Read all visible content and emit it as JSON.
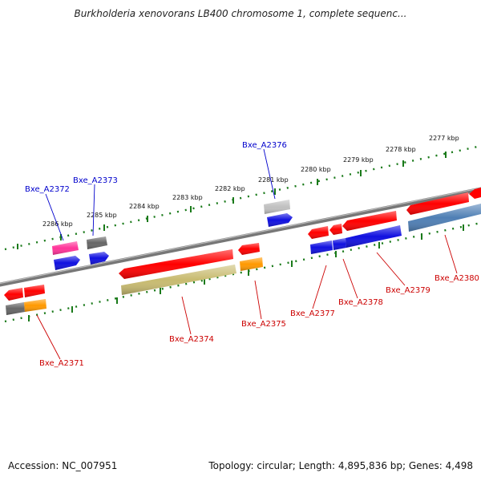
{
  "title": "Burkholderia xenovorans LB400 chromosome 1, complete sequenc...",
  "footer": {
    "accession": "Accession: NC_007951",
    "summary": "Topology: circular; Length: 4,895,836 bp; Genes: 4,498"
  },
  "ruler_labels": [
    "2286 kbp",
    "2285 kbp",
    "2284 kbp",
    "2283 kbp",
    "2282 kbp",
    "2281 kbp",
    "2280 kbp",
    "2279 kbp",
    "2278 kbp",
    "2277 kbp"
  ],
  "gene_labels_top": [
    "Bxe_A2372",
    "Bxe_A2373",
    "Bxe_A2376"
  ],
  "gene_labels_bottom": [
    "Bxe_A2371",
    "Bxe_A2374",
    "Bxe_A2375",
    "Bxe_A2377",
    "Bxe_A2378",
    "Bxe_A2379",
    "Bxe_A2380"
  ],
  "colors": {
    "cds": "#ff0000",
    "blue": "#1010e0",
    "steel_blue": "#4f7fb5",
    "pink": "#ff3399",
    "gray": "#666666",
    "light_gray": "#c0c0c0",
    "orange": "#ff9900",
    "olive": "#c8bb70",
    "backbone": "#777777",
    "tick": "#1a7a1a",
    "label_blue": "#0000cc",
    "label_red": "#cc0000"
  }
}
